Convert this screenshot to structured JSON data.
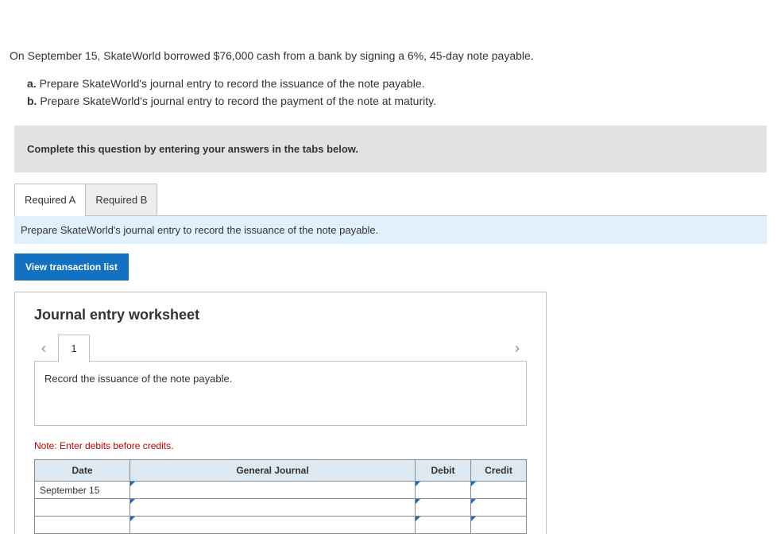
{
  "problem": {
    "main": "On September 15, SkateWorld borrowed $76,000 cash from a bank by signing a 6%, 45-day note payable.",
    "parts": [
      {
        "label": "a.",
        "text": "Prepare SkateWorld's journal entry to record the issuance of the note payable."
      },
      {
        "label": "b.",
        "text": "Prepare SkateWorld's journal entry to record the payment of the note at maturity."
      }
    ]
  },
  "banner": "Complete this question by entering your answers in the tabs below.",
  "tabs": {
    "a": "Required A",
    "b": "Required B",
    "desc": "Prepare SkateWorld's journal entry to record the issuance of the note payable."
  },
  "vt_button": "View transaction list",
  "worksheet": {
    "title": "Journal entry worksheet",
    "entry_number": "1",
    "instruction": "Record the issuance of the note payable.",
    "note": "Note: Enter debits before credits.",
    "columns": {
      "date": "Date",
      "gj": "General Journal",
      "debit": "Debit",
      "credit": "Credit"
    },
    "rows": [
      {
        "date": "September 15",
        "gj": "",
        "debit": "",
        "credit": ""
      },
      {
        "date": "",
        "gj": "",
        "debit": "",
        "credit": ""
      },
      {
        "date": "",
        "gj": "",
        "debit": "",
        "credit": ""
      }
    ]
  }
}
